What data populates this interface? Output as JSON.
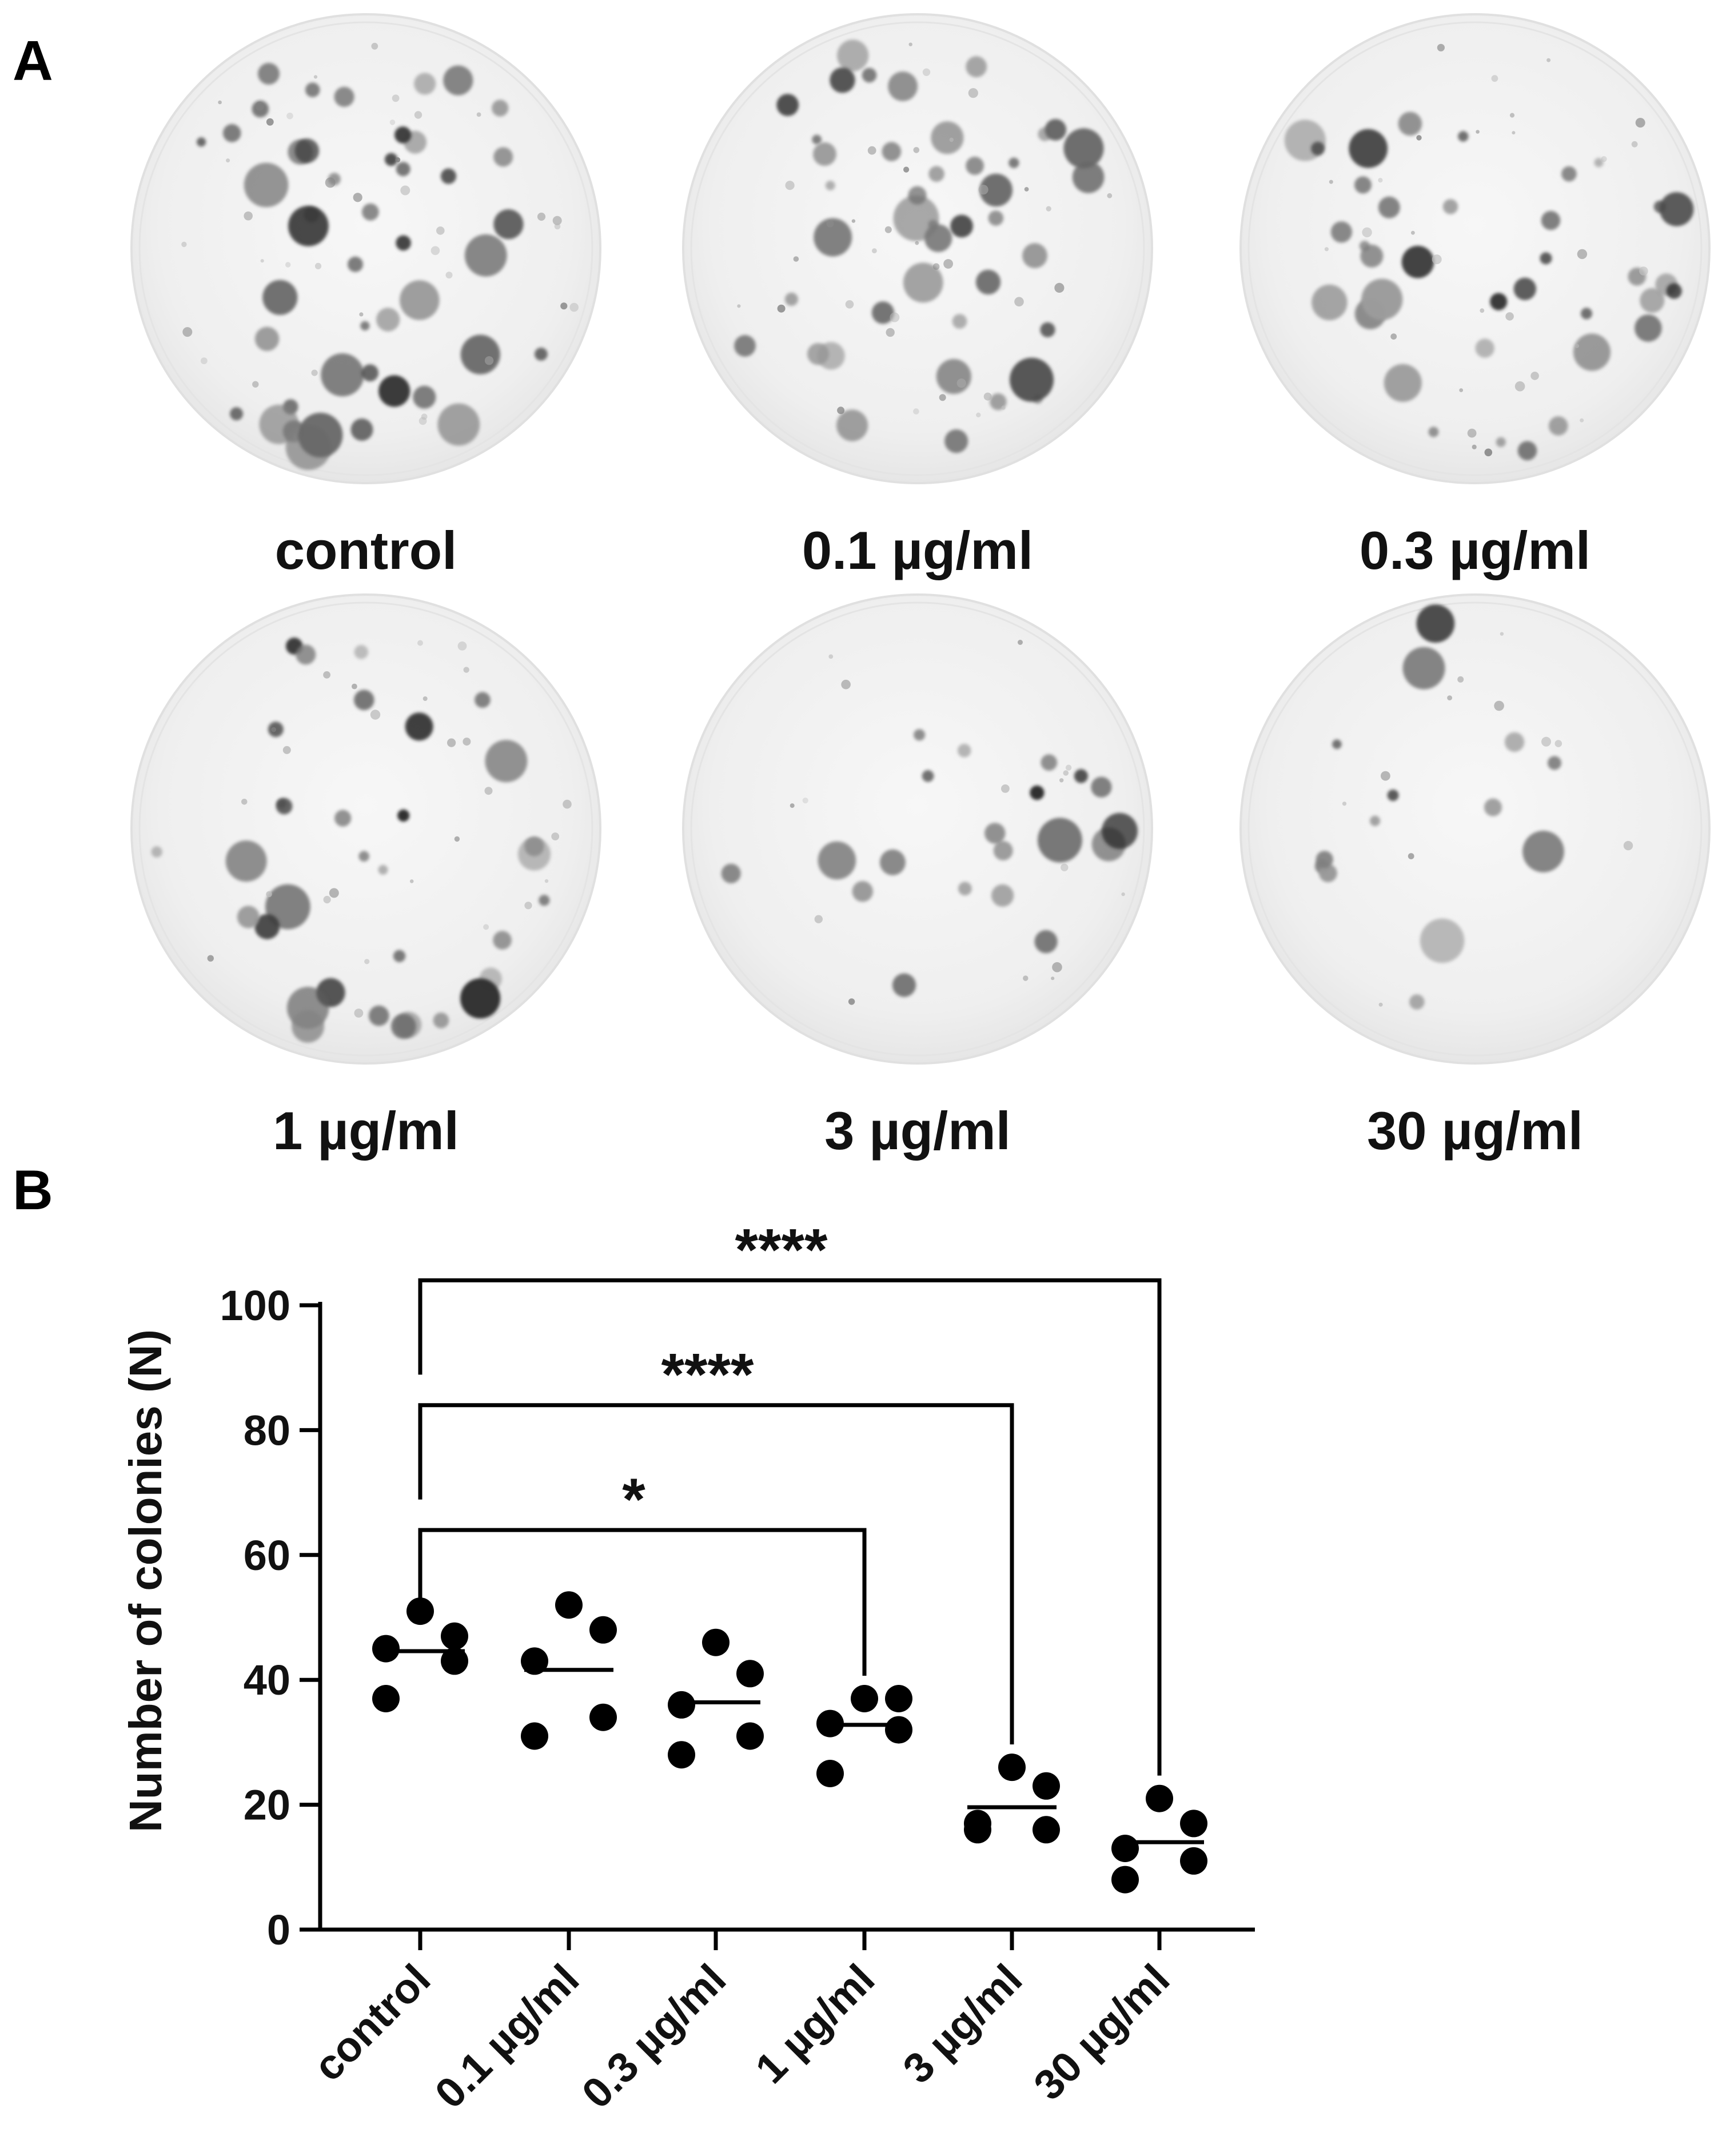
{
  "panel_a": {
    "letter": "A",
    "plates": [
      {
        "label": "control",
        "colony_count": 45
      },
      {
        "label": "0.1 µg/ml",
        "colony_count": 42
      },
      {
        "label": "0.3 µg/ml",
        "colony_count": 36
      },
      {
        "label": "1 µg/ml",
        "colony_count": 33
      },
      {
        "label": "3 µg/ml",
        "colony_count": 20
      },
      {
        "label": "30 µg/ml",
        "colony_count": 14
      }
    ]
  },
  "panel_b": {
    "letter": "B"
  },
  "chart_data": {
    "type": "scatter",
    "title": "",
    "xlabel": "",
    "ylabel": "Number of colonies (N)",
    "ylim": [
      0,
      100
    ],
    "yticks": [
      0,
      20,
      40,
      60,
      80,
      100
    ],
    "categories": [
      "control",
      "0.1 µg/ml",
      "0.3 µg/ml",
      "1 µg/ml",
      "3 µg/ml",
      "30 µg/ml"
    ],
    "points": [
      [
        51,
        47,
        45,
        43,
        37
      ],
      [
        52,
        48,
        43,
        34,
        31
      ],
      [
        46,
        41,
        36,
        31,
        28
      ],
      [
        37,
        37,
        33,
        32,
        25
      ],
      [
        26,
        23,
        17,
        16,
        16
      ],
      [
        21,
        17,
        13,
        11,
        8
      ]
    ],
    "means": [
      44.6,
      41.6,
      36.4,
      32.8,
      19.6,
      14.0
    ],
    "grid": false,
    "legend": "none",
    "point_color": "#000000",
    "significance": [
      {
        "from": "control",
        "to": "1 µg/ml",
        "label": "*",
        "y": 64
      },
      {
        "from": "control",
        "to": "3 µg/ml",
        "label": "****",
        "y": 84
      },
      {
        "from": "control",
        "to": "30 µg/ml",
        "label": "****",
        "y": 104
      }
    ]
  }
}
